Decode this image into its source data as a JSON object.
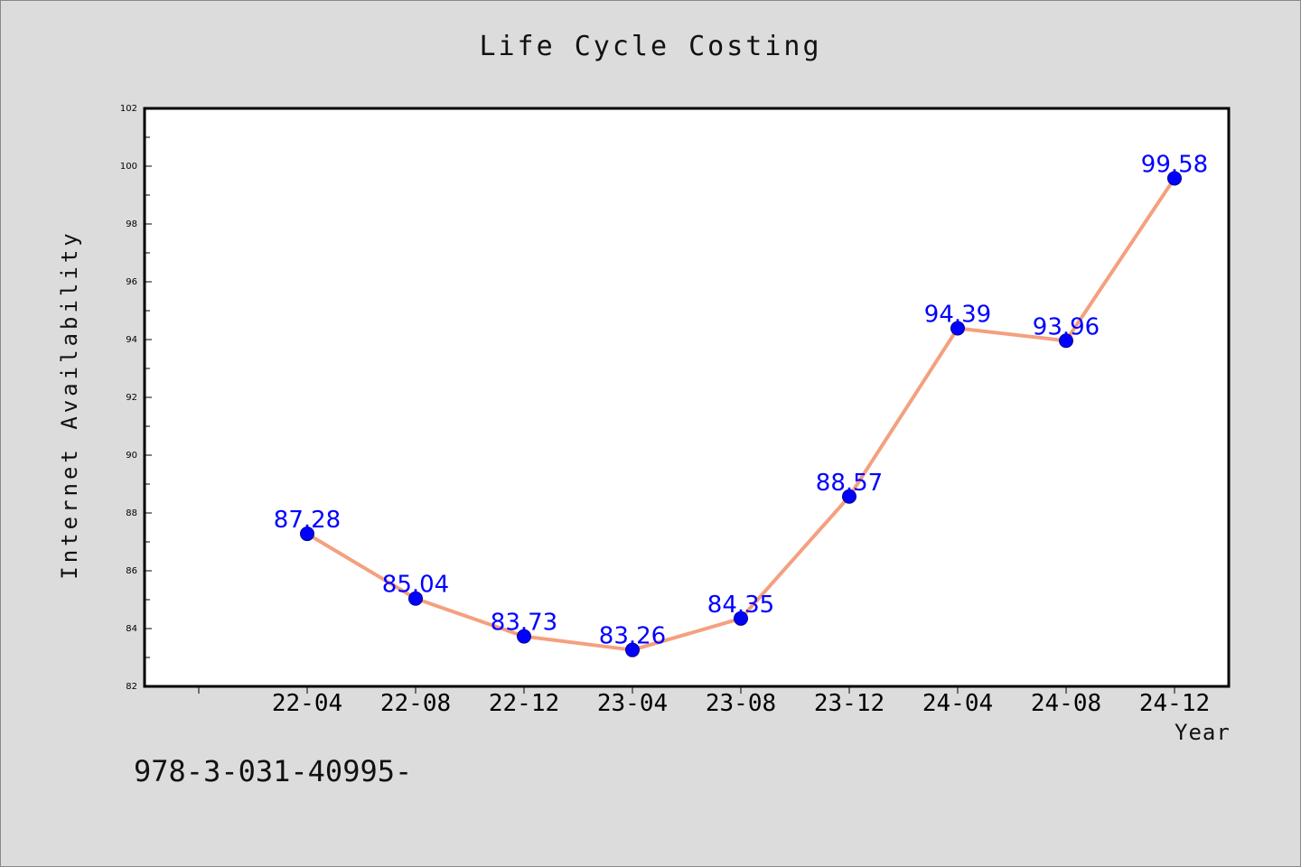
{
  "colors": {
    "background": "#dcdcdc",
    "plot_area": "#ffffff",
    "line": "#f4a07f",
    "marker": "#0000ff",
    "data_label": "#0000ff"
  },
  "footer": {
    "text": "978-3-031-40995-"
  },
  "chart_data": {
    "type": "line",
    "title": "Life Cycle Costing",
    "xlabel": "Year",
    "ylabel": "Internet Availability",
    "categories": [
      "22-04",
      "22-08",
      "22-12",
      "23-04",
      "23-08",
      "23-12",
      "24-04",
      "24-08",
      "24-12"
    ],
    "series": [
      {
        "values": [
          87.28,
          85.04,
          83.73,
          83.26,
          84.35,
          88.57,
          94.39,
          93.96,
          99.58
        ]
      }
    ],
    "value_labels": [
      "87.28",
      "85.04",
      "83.73",
      "83.26",
      "84.35",
      "88.57",
      "94.39",
      "93.96",
      "99.58"
    ],
    "ylim": [
      82,
      102
    ],
    "yticks": [
      82,
      84,
      86,
      88,
      90,
      92,
      94,
      96,
      98,
      100,
      102
    ],
    "grid": false,
    "legend": "none"
  }
}
